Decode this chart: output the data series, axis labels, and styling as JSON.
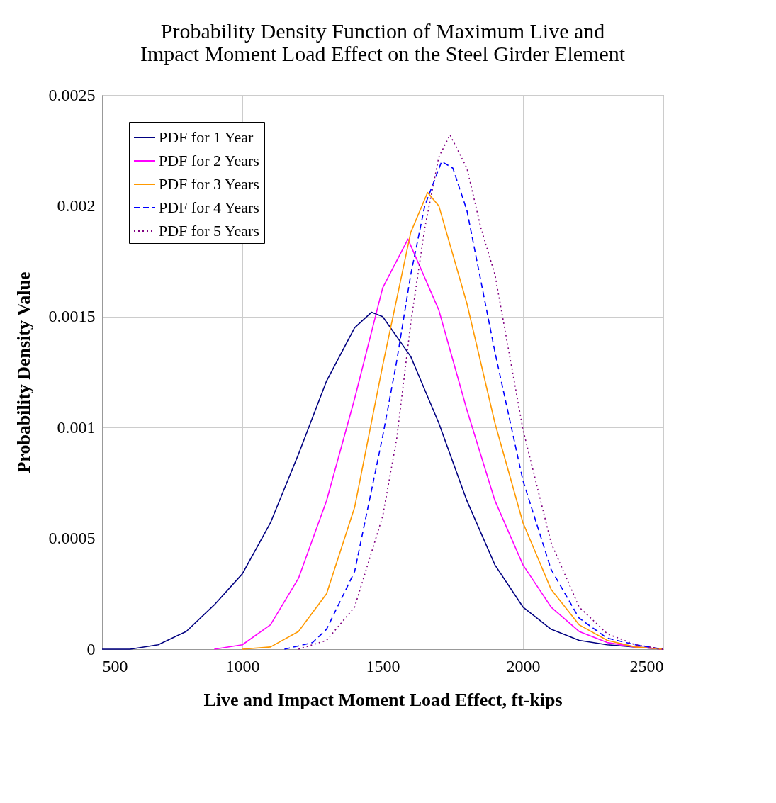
{
  "chart_data": {
    "type": "line",
    "title": "Probability Density Function of Maximum Live and Impact Moment Load Effect on the Steel Girder Element",
    "xlabel": "Live and Impact Moment Load Effect, ft-kips",
    "ylabel": "Probability Density Value",
    "xlim": [
      500,
      2500
    ],
    "xticks": [
      500,
      1000,
      1500,
      2000,
      2500
    ],
    "ylim": [
      0,
      0.0025
    ],
    "yticks": [
      0,
      0.0005,
      0.001,
      0.0015,
      0.002,
      0.0025
    ],
    "grid": true,
    "legend": "top left",
    "marker": "none",
    "series": [
      {
        "name": "PDF for 1 Year",
        "color": "#000080",
        "line_style": "solid",
        "x": [
          500,
          600,
          700,
          800,
          900,
          1000,
          1100,
          1200,
          1300,
          1400,
          1460,
          1500,
          1600,
          1700,
          1800,
          1900,
          2000,
          2100,
          2200,
          2300,
          2400,
          2500
        ],
        "values": [
          0,
          0,
          2e-05,
          8e-05,
          0.0002,
          0.00034,
          0.00057,
          0.00088,
          0.00121,
          0.00145,
          0.00152,
          0.0015,
          0.00132,
          0.00102,
          0.00067,
          0.00038,
          0.00019,
          9e-05,
          4e-05,
          2e-05,
          1e-05,
          0
        ]
      },
      {
        "name": "PDF for 2 Years",
        "color": "#ff00ff",
        "line_style": "solid",
        "x": [
          900,
          1000,
          1100,
          1200,
          1300,
          1400,
          1500,
          1590,
          1700,
          1800,
          1900,
          2000,
          2100,
          2200,
          2300,
          2400,
          2500
        ],
        "values": [
          0,
          2e-05,
          0.00011,
          0.00032,
          0.00067,
          0.00113,
          0.00163,
          0.00185,
          0.00153,
          0.00108,
          0.00067,
          0.00038,
          0.00019,
          8e-05,
          3e-05,
          1e-05,
          0
        ]
      },
      {
        "name": "PDF for 3 Years",
        "color": "#ff9900",
        "line_style": "solid",
        "x": [
          1000,
          1100,
          1200,
          1300,
          1400,
          1500,
          1600,
          1660,
          1700,
          1800,
          1900,
          2000,
          2100,
          2200,
          2300,
          2400,
          2500
        ],
        "values": [
          0,
          1e-05,
          8e-05,
          0.00025,
          0.00064,
          0.00128,
          0.00188,
          0.00206,
          0.002,
          0.00156,
          0.00102,
          0.00057,
          0.00027,
          0.00011,
          4e-05,
          1e-05,
          0
        ]
      },
      {
        "name": "PDF for 4 Years",
        "color": "#0000ff",
        "line_style": "dashed",
        "x": [
          1150,
          1250,
          1300,
          1400,
          1500,
          1550,
          1600,
          1650,
          1710,
          1750,
          1800,
          1900,
          2000,
          2100,
          2200,
          2300,
          2400,
          2500
        ],
        "values": [
          0,
          3e-05,
          9e-05,
          0.00035,
          0.00096,
          0.0013,
          0.00169,
          0.002,
          0.0022,
          0.00217,
          0.00198,
          0.00134,
          0.00076,
          0.00036,
          0.00014,
          5e-05,
          2e-05,
          0
        ]
      },
      {
        "name": "PDF for 5 Years",
        "color": "#800080",
        "line_style": "dotted",
        "x": [
          1200,
          1300,
          1400,
          1500,
          1550,
          1600,
          1650,
          1700,
          1740,
          1800,
          1850,
          1900,
          2000,
          2100,
          2200,
          2300,
          2400,
          2500
        ],
        "values": [
          0,
          4e-05,
          0.00019,
          0.0006,
          0.00095,
          0.00147,
          0.0019,
          0.00222,
          0.00232,
          0.00217,
          0.0019,
          0.00169,
          0.00099,
          0.00048,
          0.00019,
          7e-05,
          2e-05,
          0
        ]
      }
    ]
  }
}
